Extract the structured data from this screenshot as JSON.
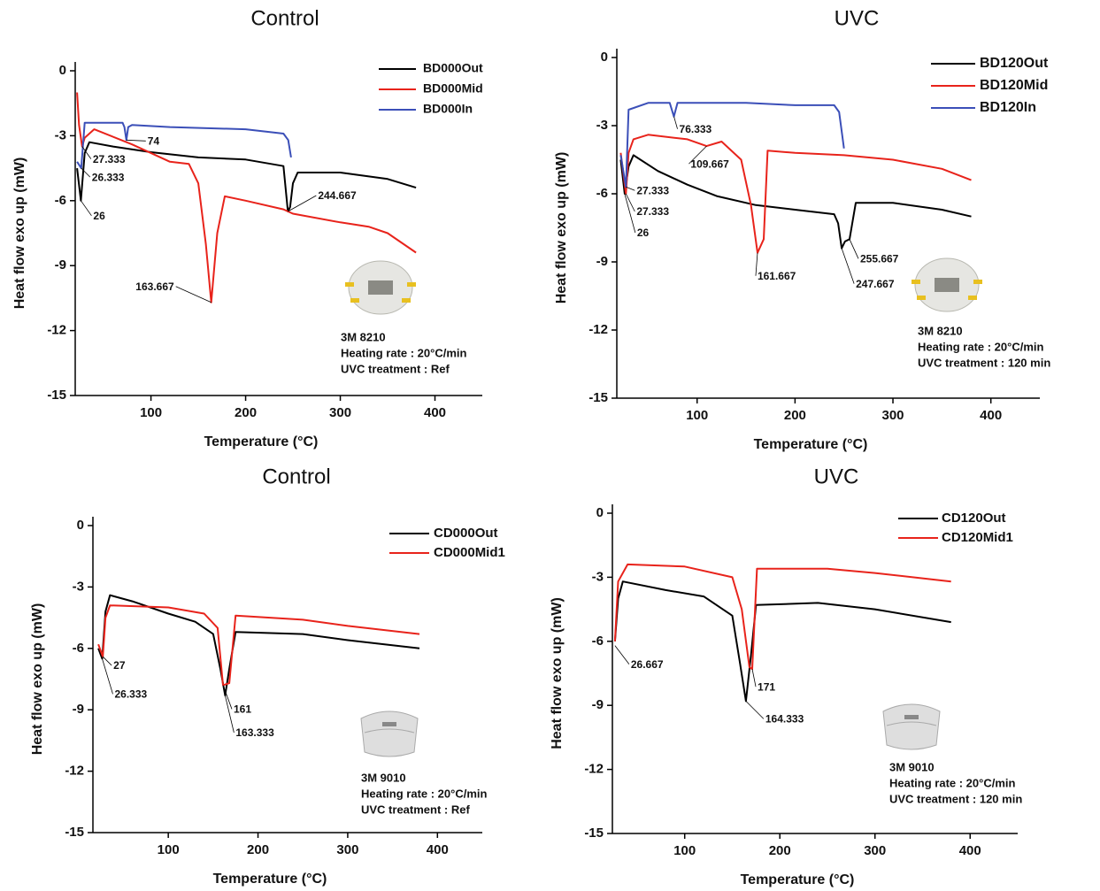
{
  "chart_data": [
    {
      "type": "line",
      "title": "Control",
      "xlabel": "Temperature (°C)",
      "ylabel": "Heat flow exo up (mW)",
      "xlim": [
        20,
        450
      ],
      "ylim": [
        -15,
        0
      ],
      "xticks": [
        100,
        200,
        300,
        400
      ],
      "yticks": [
        0,
        -3,
        -6,
        -9,
        -12,
        -15
      ],
      "legend": "upper right",
      "series": [
        {
          "name": "BD000Out",
          "color": "#000000",
          "x": [
            22,
            26,
            30,
            35,
            60,
            100,
            150,
            200,
            240,
            244.667,
            247,
            250,
            255,
            300,
            350,
            380
          ],
          "values": [
            -4.5,
            -6,
            -3.8,
            -3.3,
            -3.5,
            -3.76,
            -4.0,
            -4.1,
            -4.4,
            -6.5,
            -6.3,
            -5.2,
            -4.7,
            -4.7,
            -5.0,
            -5.4
          ]
        },
        {
          "name": "BD000Mid",
          "color": "#e8231b",
          "x": [
            22,
            24,
            27.333,
            30,
            40,
            80,
            120,
            140,
            150,
            158,
            163.667,
            170,
            178,
            200,
            240,
            250,
            300,
            330,
            350,
            380
          ],
          "values": [
            -1,
            -2.5,
            -3.5,
            -3.1,
            -2.7,
            -3.4,
            -4.2,
            -4.3,
            -5.2,
            -8,
            -10.7,
            -7.5,
            -5.8,
            -6.0,
            -6.4,
            -6.6,
            -7.0,
            -7.2,
            -7.5,
            -8.4
          ]
        },
        {
          "name": "BD000In",
          "color": "#3b4fb8",
          "x": [
            22,
            26.333,
            30,
            70,
            72,
            74,
            76,
            80,
            120,
            200,
            240,
            245,
            248
          ],
          "values": [
            -4.2,
            -4.5,
            -2.4,
            -2.4,
            -2.6,
            -3.2,
            -2.6,
            -2.5,
            -2.6,
            -2.7,
            -2.9,
            -3.2,
            -4.0
          ]
        }
      ],
      "annotations": [
        {
          "x": 74,
          "y": -3.2
        },
        {
          "x": 27.333,
          "y": -3.5
        },
        {
          "x": 26.333,
          "y": -4.5
        },
        {
          "x": 26,
          "y": -6
        },
        {
          "x": 244.667,
          "y": -6.5
        },
        {
          "x": 163.667,
          "y": -10.7
        }
      ],
      "notes": [
        "3M 8210",
        "Heating rate : 20°C/min",
        "UVC treatment : Ref"
      ]
    },
    {
      "type": "line",
      "title": "UVC",
      "xlabel": "Temperature (°C)",
      "ylabel": "Heat flow exo up (mW)",
      "xlim": [
        18,
        450
      ],
      "ylim": [
        -15,
        0
      ],
      "xticks": [
        100,
        200,
        300,
        400
      ],
      "yticks": [
        0,
        -3,
        -6,
        -9,
        -12,
        -15
      ],
      "legend": "upper right",
      "series": [
        {
          "name": "BD120Out",
          "color": "#000000",
          "x": [
            22,
            26,
            30,
            35,
            60,
            90,
            120,
            160,
            200,
            240,
            244,
            247.667,
            251,
            255.667,
            262,
            300,
            350,
            380
          ],
          "values": [
            -4.5,
            -6,
            -4.8,
            -4.3,
            -5.0,
            -5.6,
            -6.1,
            -6.5,
            -6.7,
            -6.9,
            -7.3,
            -8.4,
            -8.1,
            -8.0,
            -6.4,
            -6.4,
            -6.7,
            -7.0
          ]
        },
        {
          "name": "BD120Mid",
          "color": "#e8231b",
          "x": [
            22,
            27.333,
            30,
            35,
            50,
            90,
            109.667,
            125,
            145,
            155,
            161.667,
            168,
            172,
            200,
            250,
            300,
            350,
            380
          ],
          "values": [
            -4.2,
            -6,
            -4.2,
            -3.6,
            -3.4,
            -3.6,
            -3.9,
            -3.7,
            -4.5,
            -6.5,
            -8.6,
            -8.0,
            -4.1,
            -4.2,
            -4.3,
            -4.5,
            -4.9,
            -5.4
          ]
        },
        {
          "name": "BD120In",
          "color": "#3b4fb8",
          "x": [
            22,
            27.333,
            30,
            50,
            72,
            76.333,
            80,
            150,
            200,
            240,
            245,
            250
          ],
          "values": [
            -4.3,
            -5.7,
            -2.3,
            -2.0,
            -2.0,
            -2.6,
            -2.0,
            -2.0,
            -2.1,
            -2.1,
            -2.4,
            -4.0
          ]
        }
      ],
      "annotations": [
        {
          "x": 76.333,
          "y": -2.6
        },
        {
          "x": 109.667,
          "y": -3.9
        },
        {
          "x": 27.333,
          "y": -5.7
        },
        {
          "x": 27.333,
          "y": -6.0
        },
        {
          "x": 26,
          "y": -6.0
        },
        {
          "x": 161.667,
          "y": -8.6
        },
        {
          "x": 247.667,
          "y": -8.4
        },
        {
          "x": 255.667,
          "y": -8.0
        }
      ],
      "notes": [
        "3M 8210",
        "Heating rate : 20°C/min",
        "UVC treatment : 120 min"
      ]
    },
    {
      "type": "line",
      "title": "Control",
      "xlabel": "Temperature (°C)",
      "ylabel": "Heat flow exo up (mW)",
      "xlim": [
        16,
        450
      ],
      "ylim": [
        -15,
        0
      ],
      "xticks": [
        100,
        200,
        300,
        400
      ],
      "yticks": [
        0,
        -3,
        -6,
        -9,
        -12,
        -15
      ],
      "legend": "upper right",
      "series": [
        {
          "name": "CD000Out",
          "color": "#000000",
          "x": [
            22,
            26.333,
            30,
            35,
            60,
            100,
            130,
            150,
            158,
            163.333,
            168,
            175,
            250,
            300,
            380
          ],
          "values": [
            -6,
            -6.5,
            -4.2,
            -3.4,
            -3.7,
            -4.3,
            -4.7,
            -5.3,
            -7,
            -8.3,
            -7,
            -5.2,
            -5.3,
            -5.6,
            -6.0
          ]
        },
        {
          "name": "CD000Mid1",
          "color": "#e8231b",
          "x": [
            22,
            27,
            30,
            35,
            100,
            140,
            155,
            161,
            168,
            175,
            250,
            300,
            380
          ],
          "values": [
            -5.8,
            -6.4,
            -4.5,
            -3.9,
            -4.0,
            -4.3,
            -5.0,
            -7.8,
            -7.7,
            -4.4,
            -4.6,
            -4.9,
            -5.3
          ]
        }
      ],
      "annotations": [
        {
          "x": 27,
          "y": -6.4
        },
        {
          "x": 26.333,
          "y": -6.5
        },
        {
          "x": 161,
          "y": -7.8
        },
        {
          "x": 163.333,
          "y": -8.3
        }
      ],
      "notes": [
        "3M 9010",
        "Heating rate : 20°C/min",
        "UVC treatment : Ref"
      ]
    },
    {
      "type": "line",
      "title": "UVC",
      "xlabel": "Temperature (°C)",
      "ylabel": "Heat flow exo up (mW)",
      "xlim": [
        24,
        450
      ],
      "ylim": [
        -15,
        0
      ],
      "xticks": [
        100,
        200,
        300,
        400
      ],
      "yticks": [
        0,
        -3,
        -6,
        -9,
        -12,
        -15
      ],
      "legend": "upper right",
      "series": [
        {
          "name": "CD120Out",
          "color": "#000000",
          "x": [
            26.667,
            30,
            35,
            80,
            120,
            150,
            158,
            164.333,
            170,
            175,
            240,
            300,
            380
          ],
          "values": [
            -6,
            -4.0,
            -3.2,
            -3.6,
            -3.9,
            -4.8,
            -7,
            -8.8,
            -6.5,
            -4.3,
            -4.2,
            -4.5,
            -5.1
          ]
        },
        {
          "name": "CD120Mid1",
          "color": "#e8231b",
          "x": [
            26.667,
            30,
            40,
            100,
            150,
            160,
            168,
            171,
            176,
            250,
            300,
            380
          ],
          "values": [
            -6,
            -3.2,
            -2.4,
            -2.5,
            -3.0,
            -4.5,
            -7.2,
            -7.3,
            -2.6,
            -2.6,
            -2.8,
            -3.2
          ]
        }
      ],
      "annotations": [
        {
          "x": 26.667,
          "y": -6.2
        },
        {
          "x": 171,
          "y": -7.3
        },
        {
          "x": 164.333,
          "y": -8.8
        }
      ],
      "notes": [
        "3M 9010",
        "Heating rate : 20°C/min",
        "UVC treatment : 120 min"
      ]
    }
  ]
}
